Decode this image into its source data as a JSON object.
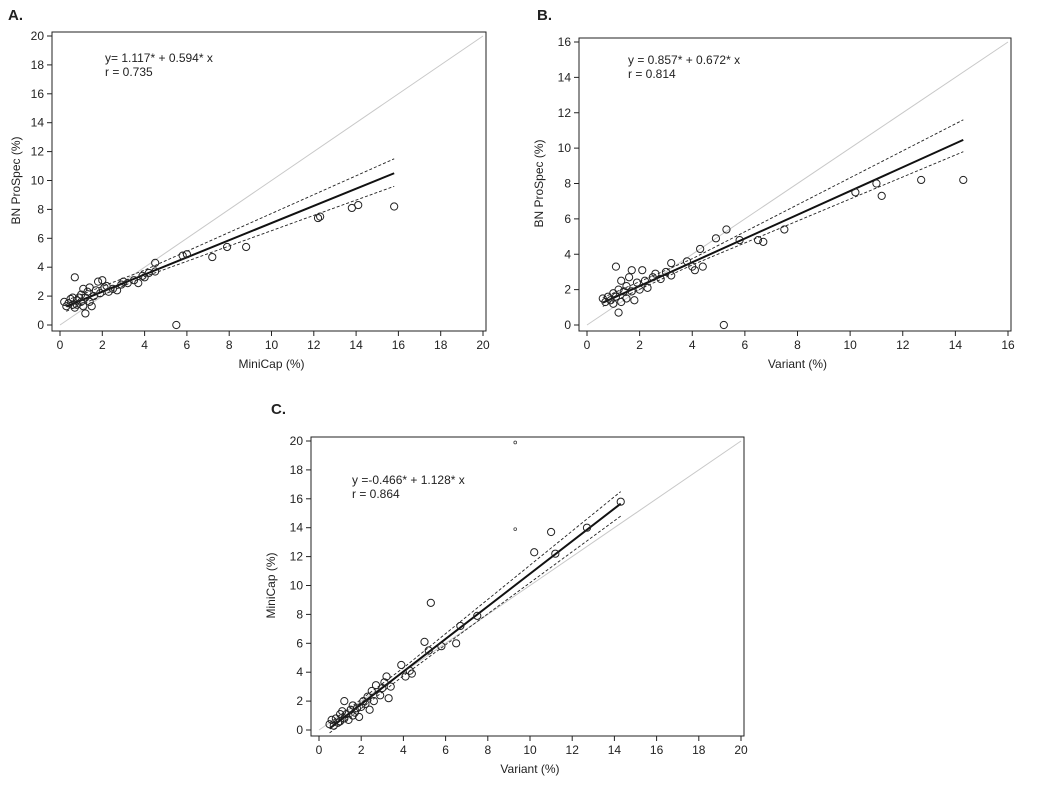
{
  "chart_data": [
    {
      "type": "scatter",
      "panel_label": "A.",
      "xlabel": "MiniCap (%)",
      "ylabel": "BN ProSpec (%)",
      "xlim": [
        0,
        20
      ],
      "ylim": [
        0,
        20
      ],
      "xticks": [
        0,
        2,
        4,
        6,
        8,
        10,
        12,
        14,
        16,
        18,
        20
      ],
      "yticks": [
        0,
        2,
        4,
        6,
        8,
        10,
        12,
        14,
        16,
        18,
        20
      ],
      "equation": "y= 1.117* + 0.594* x",
      "r_text": "r = 0.735",
      "fit": {
        "intercept": 1.117,
        "slope": 0.594,
        "x_range": [
          0.3,
          15.8
        ]
      },
      "ci_band": {
        "lower": [
          [
            0.3,
            0.95
          ],
          [
            4.0,
            3.35
          ],
          [
            15.8,
            9.6
          ]
        ],
        "upper": [
          [
            0.3,
            1.7
          ],
          [
            4.0,
            3.8
          ],
          [
            15.8,
            11.5
          ]
        ]
      },
      "identity_line": true,
      "points": [
        [
          0.2,
          1.6
        ],
        [
          0.3,
          1.3
        ],
        [
          0.4,
          1.5
        ],
        [
          0.5,
          1.8
        ],
        [
          0.6,
          1.4
        ],
        [
          0.6,
          1.9
        ],
        [
          0.7,
          3.3
        ],
        [
          0.7,
          1.2
        ],
        [
          0.8,
          1.7
        ],
        [
          0.8,
          1.4
        ],
        [
          0.9,
          1.9
        ],
        [
          1.0,
          1.6
        ],
        [
          1.0,
          2.1
        ],
        [
          1.1,
          1.3
        ],
        [
          1.1,
          2.5
        ],
        [
          1.2,
          0.8
        ],
        [
          1.2,
          1.9
        ],
        [
          1.3,
          2.3
        ],
        [
          1.4,
          1.6
        ],
        [
          1.4,
          2.6
        ],
        [
          1.5,
          1.3
        ],
        [
          1.6,
          2.0
        ],
        [
          1.7,
          2.4
        ],
        [
          1.8,
          3.0
        ],
        [
          1.9,
          2.2
        ],
        [
          2.0,
          3.1
        ],
        [
          2.1,
          2.6
        ],
        [
          2.2,
          2.7
        ],
        [
          2.3,
          2.3
        ],
        [
          2.5,
          2.5
        ],
        [
          2.7,
          2.4
        ],
        [
          2.9,
          2.8
        ],
        [
          3.0,
          3.0
        ],
        [
          3.2,
          2.9
        ],
        [
          3.5,
          3.1
        ],
        [
          3.7,
          2.9
        ],
        [
          3.9,
          3.4
        ],
        [
          4.0,
          3.3
        ],
        [
          4.2,
          3.6
        ],
        [
          4.5,
          3.7
        ],
        [
          4.5,
          4.3
        ],
        [
          5.5,
          0.0
        ],
        [
          5.8,
          4.8
        ],
        [
          6.0,
          4.9
        ],
        [
          7.2,
          4.7
        ],
        [
          7.9,
          5.4
        ],
        [
          8.8,
          5.4
        ],
        [
          12.2,
          7.4
        ],
        [
          12.3,
          7.5
        ],
        [
          13.8,
          8.1
        ],
        [
          14.1,
          8.3
        ],
        [
          15.8,
          8.2
        ]
      ]
    },
    {
      "type": "scatter",
      "panel_label": "B.",
      "xlabel": "Variant (%)",
      "ylabel": "BN ProSpec (%)",
      "xlim": [
        0,
        16
      ],
      "ylim": [
        0,
        16
      ],
      "xticks": [
        0,
        2,
        4,
        6,
        8,
        10,
        12,
        14,
        16
      ],
      "yticks": [
        0,
        2,
        4,
        6,
        8,
        10,
        12,
        14,
        16
      ],
      "equation": "y = 0.857* + 0.672* x",
      "r_text": "r = 0.814",
      "fit": {
        "intercept": 0.857,
        "slope": 0.672,
        "x_range": [
          0.6,
          14.3
        ]
      },
      "ci_band": {
        "lower": [
          [
            0.6,
            1.05
          ],
          [
            4.0,
            3.4
          ],
          [
            14.3,
            9.8
          ]
        ],
        "upper": [
          [
            0.6,
            1.55
          ],
          [
            4.0,
            3.75
          ],
          [
            14.3,
            11.6
          ]
        ]
      },
      "identity_line": true,
      "points": [
        [
          0.6,
          1.5
        ],
        [
          0.7,
          1.3
        ],
        [
          0.8,
          1.6
        ],
        [
          0.9,
          1.4
        ],
        [
          1.0,
          1.8
        ],
        [
          1.0,
          1.2
        ],
        [
          1.1,
          3.3
        ],
        [
          1.1,
          1.6
        ],
        [
          1.2,
          0.7
        ],
        [
          1.2,
          2.0
        ],
        [
          1.3,
          1.3
        ],
        [
          1.3,
          2.5
        ],
        [
          1.4,
          1.9
        ],
        [
          1.5,
          2.2
        ],
        [
          1.5,
          1.5
        ],
        [
          1.6,
          2.7
        ],
        [
          1.7,
          3.1
        ],
        [
          1.7,
          1.9
        ],
        [
          1.8,
          1.4
        ],
        [
          1.9,
          2.4
        ],
        [
          2.0,
          2.0
        ],
        [
          2.1,
          3.1
        ],
        [
          2.2,
          2.5
        ],
        [
          2.3,
          2.1
        ],
        [
          2.5,
          2.7
        ],
        [
          2.6,
          2.9
        ],
        [
          2.8,
          2.6
        ],
        [
          3.0,
          3.0
        ],
        [
          3.2,
          3.5
        ],
        [
          3.2,
          2.8
        ],
        [
          3.8,
          3.6
        ],
        [
          4.0,
          3.3
        ],
        [
          4.1,
          3.1
        ],
        [
          4.3,
          4.3
        ],
        [
          4.4,
          3.3
        ],
        [
          4.9,
          4.9
        ],
        [
          5.2,
          0.0
        ],
        [
          5.3,
          5.4
        ],
        [
          5.8,
          4.8
        ],
        [
          6.5,
          4.8
        ],
        [
          6.7,
          4.7
        ],
        [
          7.5,
          5.4
        ],
        [
          10.2,
          7.5
        ],
        [
          11.0,
          8.0
        ],
        [
          11.2,
          7.3
        ],
        [
          12.7,
          8.2
        ],
        [
          14.3,
          8.2
        ]
      ]
    },
    {
      "type": "scatter",
      "panel_label": "C.",
      "xlabel": "Variant (%)",
      "ylabel": "MiniCap (%)",
      "xlim": [
        0,
        20
      ],
      "ylim": [
        0,
        20
      ],
      "xticks": [
        0,
        2,
        4,
        6,
        8,
        10,
        12,
        14,
        16,
        18,
        20
      ],
      "yticks": [
        0,
        2,
        4,
        6,
        8,
        10,
        12,
        14,
        16,
        18,
        20
      ],
      "equation": "y =-0.466* + 1.128* x",
      "r_text": "r = 0.864",
      "fit": {
        "intercept": -0.466,
        "slope": 1.128,
        "x_range": [
          0.5,
          14.3
        ]
      },
      "ci_band": {
        "lower": [
          [
            0.5,
            -0.2
          ],
          [
            4.0,
            3.75
          ],
          [
            14.3,
            14.8
          ]
        ],
        "upper": [
          [
            0.5,
            0.5
          ],
          [
            4.0,
            4.3
          ],
          [
            14.3,
            16.5
          ]
        ]
      },
      "identity_line": true,
      "points": [
        [
          0.5,
          0.4
        ],
        [
          0.6,
          0.7
        ],
        [
          0.7,
          0.3
        ],
        [
          0.8,
          0.8
        ],
        [
          0.9,
          0.5
        ],
        [
          1.0,
          1.1
        ],
        [
          1.0,
          0.6
        ],
        [
          1.1,
          1.3
        ],
        [
          1.2,
          0.8
        ],
        [
          1.2,
          2.0
        ],
        [
          1.3,
          1.1
        ],
        [
          1.4,
          0.7
        ],
        [
          1.5,
          1.4
        ],
        [
          1.6,
          1.0
        ],
        [
          1.6,
          1.7
        ],
        [
          1.7,
          1.2
        ],
        [
          1.8,
          1.5
        ],
        [
          1.9,
          0.9
        ],
        [
          2.0,
          1.6
        ],
        [
          2.1,
          2.0
        ],
        [
          2.2,
          1.8
        ],
        [
          2.3,
          2.3
        ],
        [
          2.4,
          1.4
        ],
        [
          2.5,
          2.7
        ],
        [
          2.6,
          2.0
        ],
        [
          2.7,
          3.1
        ],
        [
          2.9,
          2.4
        ],
        [
          3.0,
          2.9
        ],
        [
          3.1,
          3.3
        ],
        [
          3.2,
          3.7
        ],
        [
          3.3,
          2.2
        ],
        [
          3.4,
          3.0
        ],
        [
          3.9,
          4.5
        ],
        [
          4.1,
          3.7
        ],
        [
          4.3,
          4.1
        ],
        [
          4.4,
          3.9
        ],
        [
          5.0,
          6.1
        ],
        [
          5.2,
          5.5
        ],
        [
          5.3,
          8.8
        ],
        [
          5.8,
          5.8
        ],
        [
          6.5,
          6.0
        ],
        [
          6.7,
          7.2
        ],
        [
          7.5,
          7.9
        ],
        [
          10.2,
          12.3
        ],
        [
          11.0,
          13.7
        ],
        [
          11.2,
          12.2
        ],
        [
          12.7,
          14.0
        ],
        [
          14.3,
          15.8
        ]
      ],
      "small_points": [
        [
          9.3,
          19.9
        ],
        [
          9.3,
          13.9
        ]
      ]
    }
  ]
}
